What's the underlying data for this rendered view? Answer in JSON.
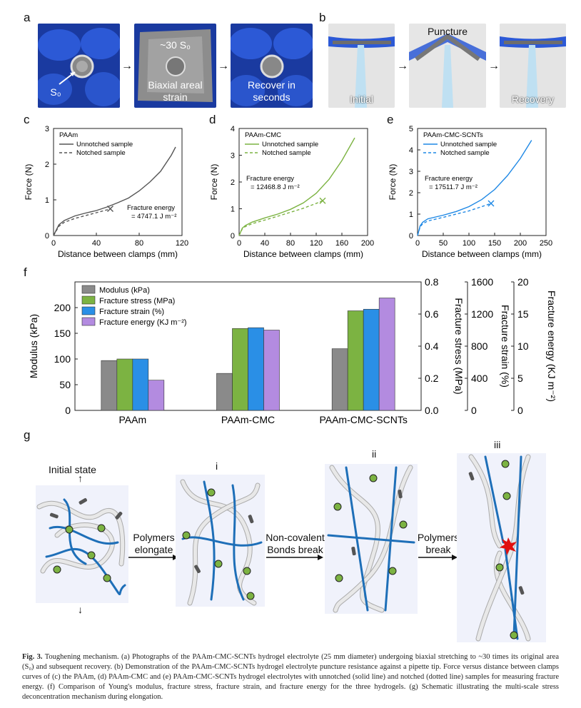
{
  "panels": {
    "a": "a",
    "b": "b",
    "c": "c",
    "d": "d",
    "e": "e",
    "f": "f",
    "g": "g"
  },
  "panel_a": {
    "label_s0": "S₀",
    "label_30s0": "~30 S₀",
    "label_biaxial": "Biaxial areal strain",
    "label_recover": "Recover in seconds"
  },
  "panel_b": {
    "label_initial": "Initial",
    "label_puncture": "Puncture",
    "label_recovery": "Recovery"
  },
  "chart_data": [
    {
      "id": "c",
      "type": "line",
      "legend_title": "PAAm",
      "xlabel": "Distance between clamps (mm)",
      "ylabel": "Force (N)",
      "xlim": [
        0,
        120
      ],
      "ylim": [
        0,
        3
      ],
      "xticks": [
        0,
        40,
        80,
        120
      ],
      "yticks": [
        0,
        1,
        2,
        3
      ],
      "color": "#555555",
      "annotation": "Fracture energy = 4747.1 J m⁻²",
      "series": [
        {
          "name": "Unnotched sample",
          "style": "solid",
          "x": [
            0,
            5,
            10,
            20,
            30,
            40,
            50,
            60,
            70,
            80,
            90,
            100,
            110,
            114
          ],
          "y": [
            0,
            0.3,
            0.42,
            0.55,
            0.63,
            0.7,
            0.8,
            0.92,
            1.05,
            1.25,
            1.5,
            1.8,
            2.25,
            2.48
          ]
        },
        {
          "name": "Notched sample",
          "style": "dashed",
          "x": [
            0,
            5,
            10,
            20,
            30,
            40,
            50,
            53
          ],
          "y": [
            0,
            0.26,
            0.37,
            0.48,
            0.56,
            0.64,
            0.72,
            0.75
          ]
        }
      ],
      "fracture_point": {
        "x": 53,
        "y": 0.75
      }
    },
    {
      "id": "d",
      "type": "line",
      "legend_title": "PAAm-CMC",
      "xlabel": "Distance between clamps (mm)",
      "ylabel": "Force (N)",
      "xlim": [
        0,
        200
      ],
      "ylim": [
        0,
        4
      ],
      "xticks": [
        0,
        40,
        80,
        120,
        160,
        200
      ],
      "yticks": [
        0,
        1,
        2,
        3,
        4
      ],
      "color": "#7cb342",
      "annotation": "Fracture energy = 12468.8 J m⁻²",
      "series": [
        {
          "name": "Unnotched sample",
          "style": "solid",
          "x": [
            0,
            5,
            10,
            20,
            40,
            60,
            80,
            100,
            120,
            140,
            160,
            180
          ],
          "y": [
            0,
            0.28,
            0.38,
            0.5,
            0.66,
            0.8,
            0.98,
            1.22,
            1.58,
            2.1,
            2.8,
            3.65
          ]
        },
        {
          "name": "Notched sample",
          "style": "dashed",
          "x": [
            0,
            5,
            10,
            20,
            40,
            60,
            80,
            100,
            120,
            130
          ],
          "y": [
            0,
            0.25,
            0.34,
            0.44,
            0.58,
            0.72,
            0.87,
            1.02,
            1.2,
            1.3
          ]
        }
      ],
      "fracture_point": {
        "x": 130,
        "y": 1.3
      }
    },
    {
      "id": "e",
      "type": "line",
      "legend_title": "PAAm-CMC-SCNTs",
      "xlabel": "Distance between clamps (mm)",
      "ylabel": "Force (N)",
      "xlim": [
        0,
        250
      ],
      "ylim": [
        0,
        5
      ],
      "xticks": [
        0,
        50,
        100,
        150,
        200,
        250
      ],
      "yticks": [
        0,
        1,
        2,
        3,
        4,
        5
      ],
      "color": "#1e88e5",
      "annotation": "Fracture energy = 17511.7 J m⁻²",
      "series": [
        {
          "name": "Unnotched sample",
          "style": "solid",
          "x": [
            0,
            5,
            10,
            20,
            50,
            75,
            100,
            125,
            150,
            175,
            200,
            222
          ],
          "y": [
            0,
            0.45,
            0.62,
            0.78,
            0.95,
            1.12,
            1.35,
            1.68,
            2.15,
            2.8,
            3.6,
            4.45
          ]
        },
        {
          "name": "Notched sample",
          "style": "dashed",
          "x": [
            0,
            5,
            10,
            20,
            50,
            75,
            100,
            125,
            143
          ],
          "y": [
            0,
            0.4,
            0.55,
            0.68,
            0.85,
            1.0,
            1.15,
            1.35,
            1.5
          ]
        }
      ],
      "fracture_point": {
        "x": 143,
        "y": 1.5
      }
    },
    {
      "id": "f",
      "type": "bar",
      "categories": [
        "PAAm",
        "PAAm-CMC",
        "PAAm-CMC-SCNTs"
      ],
      "series": [
        {
          "name": "Modulus (kPa)",
          "color": "#8a8a8a",
          "axis": "Modulus (kPa)",
          "values": [
            97,
            72,
            120
          ]
        },
        {
          "name": "Fracture stress (MPa)",
          "color": "#7cb342",
          "axis": "Fracture stress (MPa)",
          "values": [
            0.32,
            0.51,
            0.62
          ]
        },
        {
          "name": "Fracture strain (%)",
          "color": "#2a8fe6",
          "axis": "Fracture strain (%)",
          "values": [
            640,
            1030,
            1260
          ]
        },
        {
          "name": "Fracture energy (KJ m⁻²)",
          "color": "#b38be0",
          "axis": "Fracture energy (KJ m⁻²)",
          "values": [
            4.7,
            12.5,
            17.5
          ]
        }
      ],
      "axes": [
        {
          "label": "Modulus (kPa)",
          "range": [
            0,
            250
          ],
          "ticks": [
            0,
            50,
            100,
            150,
            200
          ],
          "side": "left"
        },
        {
          "label": "Fracture stress (MPa)",
          "range": [
            0,
            0.8
          ],
          "ticks": [
            "0.0",
            "0.2",
            "0.4",
            "0.6",
            "0.8"
          ],
          "side": "right"
        },
        {
          "label": "Fracture strain (%)",
          "range": [
            0,
            1600
          ],
          "ticks": [
            0,
            400,
            800,
            1200,
            1600
          ],
          "side": "right"
        },
        {
          "label": "Fracture energy (KJ m⁻²)",
          "range": [
            0,
            20
          ],
          "ticks": [
            0,
            5,
            10,
            15,
            20
          ],
          "side": "right"
        }
      ]
    }
  ],
  "panel_g": {
    "initial_state": "Initial state",
    "stage_i": "i",
    "stage_ii": "ii",
    "stage_iii": "iii",
    "arrow1": "Polymers elongate",
    "arrow2": "Non-covalent Bonds break",
    "arrow3": "Polymers break"
  },
  "caption": {
    "fig_label": "Fig. 3.",
    "text": " Toughening mechanism. (a) Photographs of the PAAm-CMC-SCNTs hydrogel electrolyte (25 mm diameter) undergoing biaxial stretching to ~30 times its original area (S₀) and subsequent recovery. (b) Demonstration of the PAAm-CMC-SCNTs hydrogel electrolyte puncture resistance against a pipette tip. Force versus distance between clamps curves of (c) the PAAm, (d) PAAm-CMC and (e) PAAm-CMC-SCNTs hydrogel electrolytes with unnotched (solid line) and notched (dotted line) samples for measuring fracture energy. (f) Comparison of Young's modulus, fracture stress, fracture strain, and fracture energy for the three hydrogels. (g) Schematic illustrating the multi-scale stress deconcentration mechanism during elongation."
  }
}
